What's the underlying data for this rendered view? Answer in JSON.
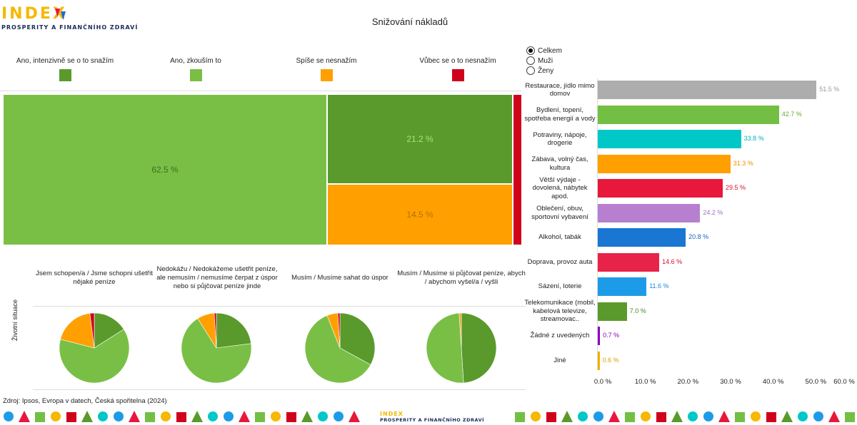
{
  "logo": {
    "word": "INDEX",
    "subtitle": "PROSPERITY A FINANČNÍHO ZDRAVÍ"
  },
  "title": "Snižování nákladů",
  "legend": [
    {
      "label": "Ano, intenzivně se o to snažím",
      "color": "#5a9a2c"
    },
    {
      "label": "Ano, zkouším to",
      "color": "#7abf45"
    },
    {
      "label": "Spíše se nesnažím",
      "color": "#ffa000"
    },
    {
      "label": "Vůbec se o to nesnažím",
      "color": "#d0021b"
    }
  ],
  "filter": {
    "options": [
      "Celkem",
      "Muži",
      "Ženy"
    ],
    "selected": "Celkem"
  },
  "treemap": {
    "cells": [
      {
        "label": "62.5 %",
        "value": 62.5,
        "color": "#7abf45",
        "text_color": "#3c6e1e"
      },
      {
        "label": "21.2 %",
        "value": 21.2,
        "color": "#5a9a2c",
        "text_color": "#a9e07c"
      },
      {
        "label": "14.5 %",
        "value": 14.5,
        "color": "#ffa000",
        "text_color": "#b86e00"
      },
      {
        "label": "",
        "value": 1.8,
        "color": "#d0021b",
        "text_color": "#ffffff"
      }
    ]
  },
  "situations": {
    "axis_label": "Životní situace",
    "items": [
      {
        "title": "Jsem schopen/a / Jsme schopni ušetřit nějaké peníze",
        "shares": [
          16,
          63,
          19,
          2
        ]
      },
      {
        "title": "Nedokážu / Nedokážeme ušetřit peníze, ale nemusím / nemusíme čerpat z úspor nebo si půjčovat peníze jinde",
        "shares": [
          23,
          68,
          8,
          1
        ]
      },
      {
        "title": "Musím / Musíme sahat do úspor",
        "shares": [
          33,
          61,
          5,
          1
        ]
      },
      {
        "title": "Musím / Musíme si půjčovat peníze, abych / abychom vyšel/a / vyšli",
        "shares": [
          49,
          50,
          1,
          0
        ]
      }
    ]
  },
  "source": "Zdroj: Ipsos, Evropa v datech, Česká spořitelna (2024)",
  "chart_data": {
    "type": "bar",
    "orientation": "horizontal",
    "categories": [
      "Restaurace, jídlo mimo domov",
      "Bydlení, topení, spotřeba energií a vody",
      "Potraviny, nápoje, drogerie",
      "Zábava, volný čas, kultura",
      "Větší výdaje - dovolená, nábytek apod.",
      "Oblečení, obuv, sportovní vybavení",
      "Alkohol, tabák",
      "Doprava, provoz auta",
      "Sázení, loterie",
      "Telekomunikace (mobil, kabelová televize, streamovac..",
      "Žádné z uvedených",
      "Jiné"
    ],
    "values": [
      51.5,
      42.7,
      33.8,
      31.3,
      29.5,
      24.2,
      20.8,
      14.6,
      11.6,
      7.0,
      0.7,
      0.6
    ],
    "value_labels": [
      "51.5 %",
      "42.7 %",
      "33.8 %",
      "31.3 %",
      "29.5 %",
      "24.2 %",
      "20.8 %",
      "14.6 %",
      "11.6 %",
      "7.0 %",
      "0.7 %",
      "0.6 %"
    ],
    "colors": [
      "#adadad",
      "#72bf44",
      "#00c8c8",
      "#ffa000",
      "#e8173c",
      "#b77fcf",
      "#1976d2",
      "#e8234a",
      "#1e9be8",
      "#5a9a2c",
      "#8a00b8",
      "#f2b100"
    ],
    "label_colors": [
      "#999999",
      "#62ad36",
      "#00b0c0",
      "#e89000",
      "#d4102f",
      "#a070c0",
      "#1565c0",
      "#d4102f",
      "#1a8ad4",
      "#4a8a24",
      "#8a00b8",
      "#d9a000"
    ],
    "xlim": [
      0,
      60
    ],
    "xticks": [
      "0.0 %",
      "10.0 %",
      "20.0 %",
      "30.0 %",
      "40.0 %",
      "50.0 %",
      "60.0 %"
    ],
    "grid": false
  },
  "footer": {
    "logo_word": "INDEX",
    "logo_subtitle": "PROSPERITY A FINANČNÍHO ZDRAVÍ"
  }
}
